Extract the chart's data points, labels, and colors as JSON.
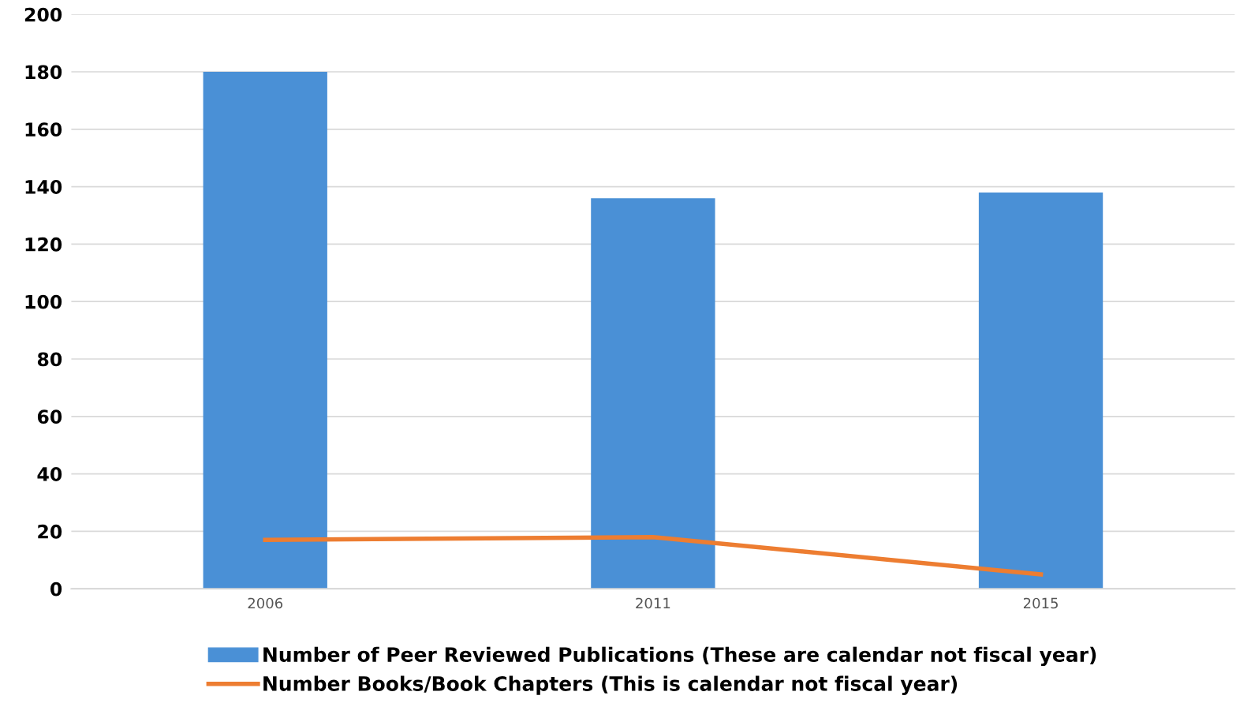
{
  "chart_data": {
    "type": "bar",
    "categories": [
      "2006",
      "2011",
      "2015"
    ],
    "series": [
      {
        "name": "Number of Peer Reviewed Publications (These are calendar not fiscal year)",
        "color": "#4a90d6",
        "values": [
          180,
          136,
          138
        ]
      },
      {
        "name": "Number Books/Book Chapters (This is calendar not fiscal year)",
        "type": "line",
        "color": "#ed7d31",
        "values": [
          17,
          18,
          5
        ]
      }
    ],
    "ylim": [
      0,
      200
    ],
    "yticks": [
      0,
      20,
      40,
      60,
      80,
      100,
      120,
      140,
      160,
      180,
      200
    ],
    "grid": "y",
    "legend": "bottom",
    "marker": "none",
    "line_style": "solid"
  }
}
